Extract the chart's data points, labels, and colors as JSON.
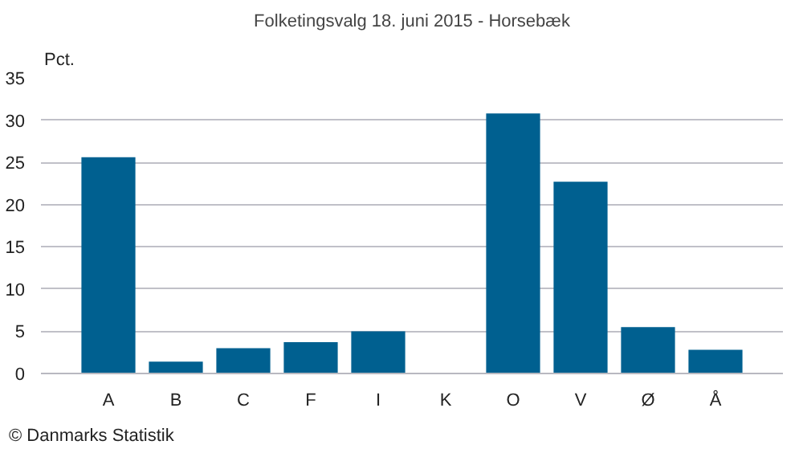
{
  "chart_data": {
    "type": "bar",
    "title": "Folketingsvalg 18. juni 2015 - Horsebæk",
    "ylabel": "Pct.",
    "categories": [
      "A",
      "B",
      "C",
      "F",
      "I",
      "K",
      "O",
      "V",
      "Ø",
      "Å"
    ],
    "values": [
      25.6,
      1.4,
      3.0,
      3.7,
      5.0,
      0,
      30.8,
      22.7,
      5.5,
      2.8
    ],
    "color": "#006090",
    "ylim": [
      0,
      35
    ],
    "yticks": [
      0,
      5,
      10,
      15,
      20,
      25,
      30,
      35
    ],
    "grid": "y",
    "annotations": [
      "© Danmarks Statistik"
    ]
  }
}
